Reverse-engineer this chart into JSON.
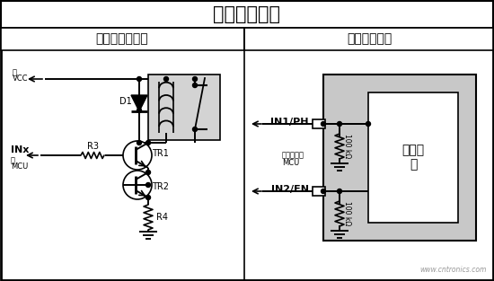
{
  "title": "数字控制接口",
  "left_title": "继电器解决方案",
  "right_title": "固态解决方案",
  "watermark": "www.cntronics.com",
  "bg_color": "#ffffff",
  "gray_box_color": "#c8c8c8",
  "relay_box_color": "#d3d3d3",
  "vcc_label": "至 VCC",
  "mcu_label": "至 MCU",
  "inx_label": "INx",
  "direct_label1": "直接连接到",
  "direct_label2": "MCU",
  "digital_core": "数字内\n核",
  "in1_label": "IN1/PH",
  "in2_label": "IN2/EN",
  "d1_label": "D1",
  "r3_label": "R3",
  "r4_label": "R4",
  "tr1_label": "TR1",
  "tr2_label": "TR2",
  "res_label": "100 kΩ"
}
